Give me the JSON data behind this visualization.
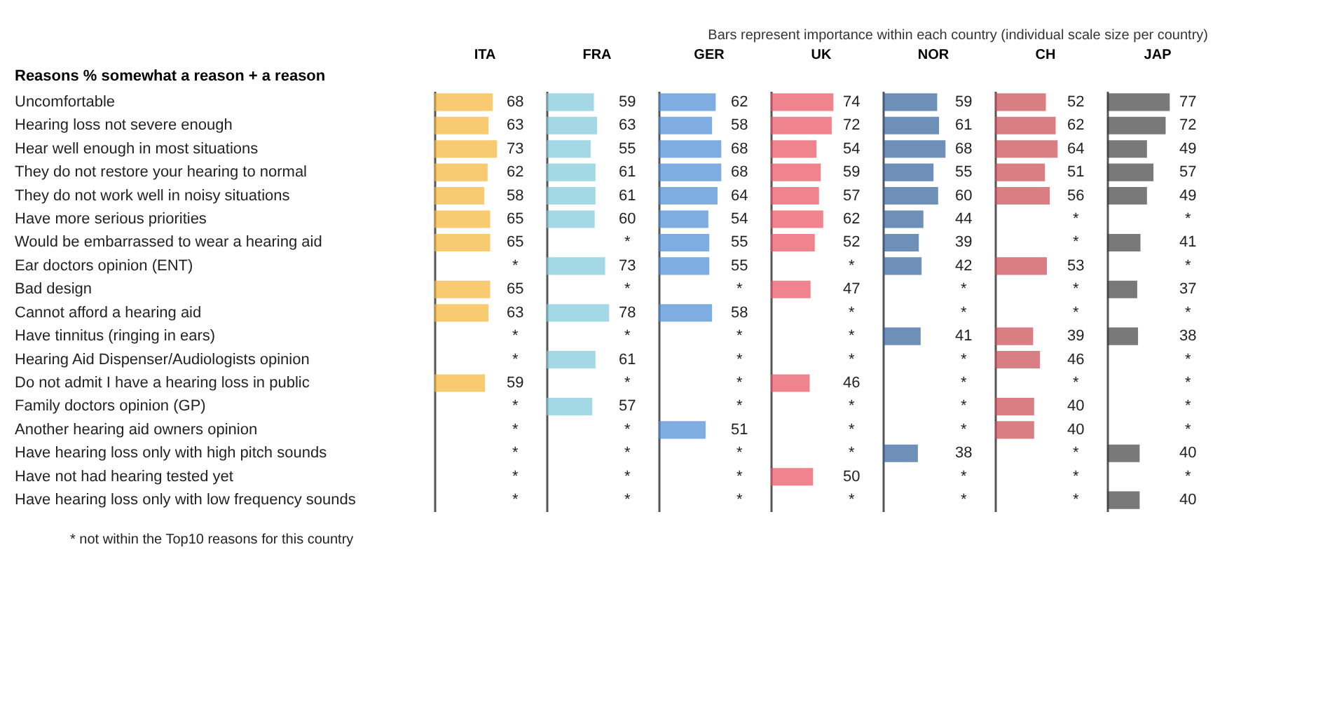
{
  "chart_data": [
    {
      "type": "bar",
      "orientation": "horizontal",
      "title": "ITA",
      "ylabel": "Reasons % somewhat a reason + a reason",
      "annotations": [
        "Bars represent importance within each country (individual scale size per country)",
        "* not within the Top10 reasons for this country"
      ],
      "categories": [
        "Uncomfortable",
        "Hearing loss not severe enough",
        "Hear well enough in most situations",
        "They do not restore your hearing to normal",
        "They do not work well in noisy situations",
        "Have more serious priorities",
        "Would be embarrassed to wear a hearing aid",
        "Ear doctors opinion (ENT)",
        "Bad design",
        "Cannot afford a hearing aid",
        "Have tinnitus (ringing in ears)",
        "Hearing Aid Dispenser/Audiologists opinion",
        "Do not admit I have a hearing loss in public",
        "Family doctors opinion (GP)",
        "Another hearing aid owners opinion",
        "Have hearing loss only with high pitch sounds",
        "Have not had hearing tested yet",
        "Have hearing loss only with low frequency sounds"
      ],
      "color": "#f5b335",
      "values": [
        68,
        63,
        73,
        62,
        58,
        65,
        65,
        null,
        65,
        63,
        null,
        null,
        59,
        null,
        null,
        null,
        null,
        null
      ],
      "value_labels": [
        "68",
        "63",
        "73",
        "62",
        "58",
        "65",
        "65",
        "*",
        "65",
        "63",
        "*",
        "*",
        "59",
        "*",
        "*",
        "*",
        "*",
        "*"
      ],
      "tick_labels": "y",
      "grid": false
    },
    {
      "type": "bar",
      "orientation": "horizontal",
      "title": "FRA",
      "color": "#7ec8d8",
      "values": [
        59,
        63,
        55,
        61,
        61,
        60,
        null,
        73,
        null,
        78,
        null,
        61,
        null,
        57,
        null,
        null,
        null,
        null
      ],
      "value_labels": [
        "59",
        "63",
        "55",
        "61",
        "61",
        "60",
        "*",
        "73",
        "*",
        "78",
        "*",
        "61",
        "*",
        "57",
        "*",
        "*",
        "*",
        "*"
      ],
      "tick_labels": false,
      "grid": false
    },
    {
      "type": "bar",
      "orientation": "horizontal",
      "title": "GER",
      "color": "#4a8ad4",
      "values": [
        62,
        58,
        68,
        68,
        64,
        54,
        55,
        55,
        null,
        58,
        null,
        null,
        null,
        null,
        51,
        null,
        null,
        null
      ],
      "value_labels": [
        "62",
        "58",
        "68",
        "68",
        "64",
        "54",
        "55",
        "55",
        "*",
        "58",
        "*",
        "*",
        "*",
        "*",
        "51",
        "*",
        "*",
        "*"
      ],
      "tick_labels": false,
      "grid": false
    },
    {
      "type": "bar",
      "orientation": "horizontal",
      "title": "UK",
      "color": "#e8505e",
      "values": [
        74,
        72,
        54,
        59,
        57,
        62,
        52,
        null,
        47,
        null,
        null,
        null,
        46,
        null,
        null,
        null,
        50,
        null
      ],
      "value_labels": [
        "74",
        "72",
        "54",
        "59",
        "57",
        "62",
        "52",
        "*",
        "47",
        "*",
        "*",
        "*",
        "46",
        "*",
        "*",
        "*",
        "50",
        "*"
      ],
      "tick_labels": false,
      "grid": false
    },
    {
      "type": "bar",
      "orientation": "horizontal",
      "title": "NOR",
      "color": "#2f5f9a",
      "values": [
        59,
        61,
        68,
        55,
        60,
        44,
        39,
        42,
        null,
        null,
        41,
        null,
        null,
        null,
        null,
        38,
        null,
        null
      ],
      "value_labels": [
        "59",
        "61",
        "68",
        "55",
        "60",
        "44",
        "39",
        "42",
        "*",
        "*",
        "41",
        "*",
        "*",
        "*",
        "*",
        "38",
        "*",
        "*"
      ],
      "tick_labels": false,
      "grid": false
    },
    {
      "type": "bar",
      "orientation": "horizontal",
      "title": "CH",
      "color": "#c9474f",
      "values": [
        52,
        62,
        64,
        51,
        56,
        null,
        null,
        53,
        null,
        null,
        39,
        46,
        null,
        40,
        40,
        null,
        null,
        null
      ],
      "value_labels": [
        "52",
        "62",
        "64",
        "51",
        "56",
        "*",
        "*",
        "53",
        "*",
        "*",
        "39",
        "46",
        "*",
        "40",
        "40",
        "*",
        "*",
        "*"
      ],
      "tick_labels": false,
      "grid": false
    },
    {
      "type": "bar",
      "orientation": "horizontal",
      "title": "JAP",
      "color": "#404040",
      "values": [
        77,
        72,
        49,
        57,
        49,
        null,
        41,
        null,
        37,
        null,
        38,
        null,
        null,
        null,
        null,
        40,
        null,
        40
      ],
      "value_labels": [
        "77",
        "72",
        "49",
        "57",
        "49",
        "*",
        "41",
        "*",
        "37",
        "*",
        "38",
        "*",
        "*",
        "*",
        "*",
        "40",
        "*",
        "40"
      ],
      "tick_labels": false,
      "grid": false
    }
  ]
}
